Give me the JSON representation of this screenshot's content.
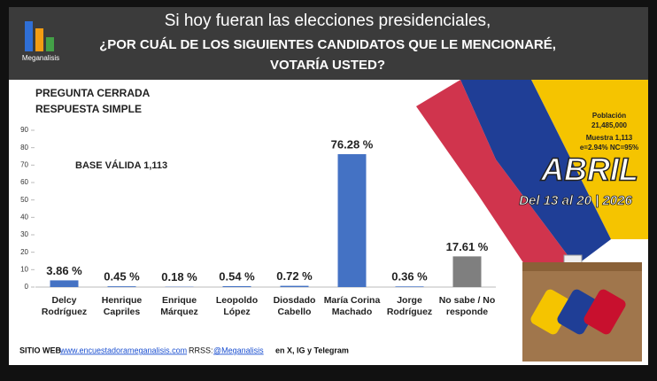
{
  "header": {
    "logo": "Meganalisis",
    "title": "Si hoy fueran las elecciones presidenciales,",
    "question": [
      "¿POR CUÁL DE LOS SIGUIENTES CANDIDATOS QUE LE MENCIONARÉ,",
      "VOTARÍA USTED?"
    ]
  },
  "chart_data": {
    "type": "bar",
    "annotations": [
      "PREGUNTA CERRADA",
      "RESPUESTA SIMPLE"
    ],
    "base": "BASE VÁLIDA 1,113",
    "categories": [
      "Delcy Rodríguez",
      "Henrique Capriles",
      "Enrique Márquez",
      "Leopoldo López",
      "Diosdado Cabello",
      "María Corina Machado",
      "Jorge Rodríguez",
      "No sabe / No responde"
    ],
    "values": [
      3.86,
      0.45,
      0.18,
      0.54,
      0.72,
      76.28,
      0.36,
      17.61
    ],
    "value_labels": [
      "3.86 %",
      "0.45 %",
      "0.18 %",
      "0.54 %",
      "0.72 %",
      "76.28 %",
      "0.36 %",
      "17.61 %"
    ],
    "colors": [
      "#4472c4",
      "#4472c4",
      "#4472c4",
      "#4472c4",
      "#4472c4",
      "#4472c4",
      "#4472c4",
      "#7f7f7f"
    ],
    "ylim": [
      0,
      90
    ],
    "yticks": [
      0,
      10,
      20,
      30,
      40,
      50,
      60,
      70,
      80,
      90
    ]
  },
  "sidebar": {
    "population_label": "Población",
    "population": "21,485,000",
    "sample": "Muestra 1,113",
    "error": "e=2.94%  NC=95%",
    "month": "ABRIL",
    "dates": "Del 13 al 20 | 2026"
  },
  "footer": {
    "site_label": "SITIO WEB",
    "site": "www.encuestadorameganalisis.com",
    "social_label": "RRSS:",
    "handle": "@Meganalisis",
    "networks": "en X, IG y Telegram"
  }
}
